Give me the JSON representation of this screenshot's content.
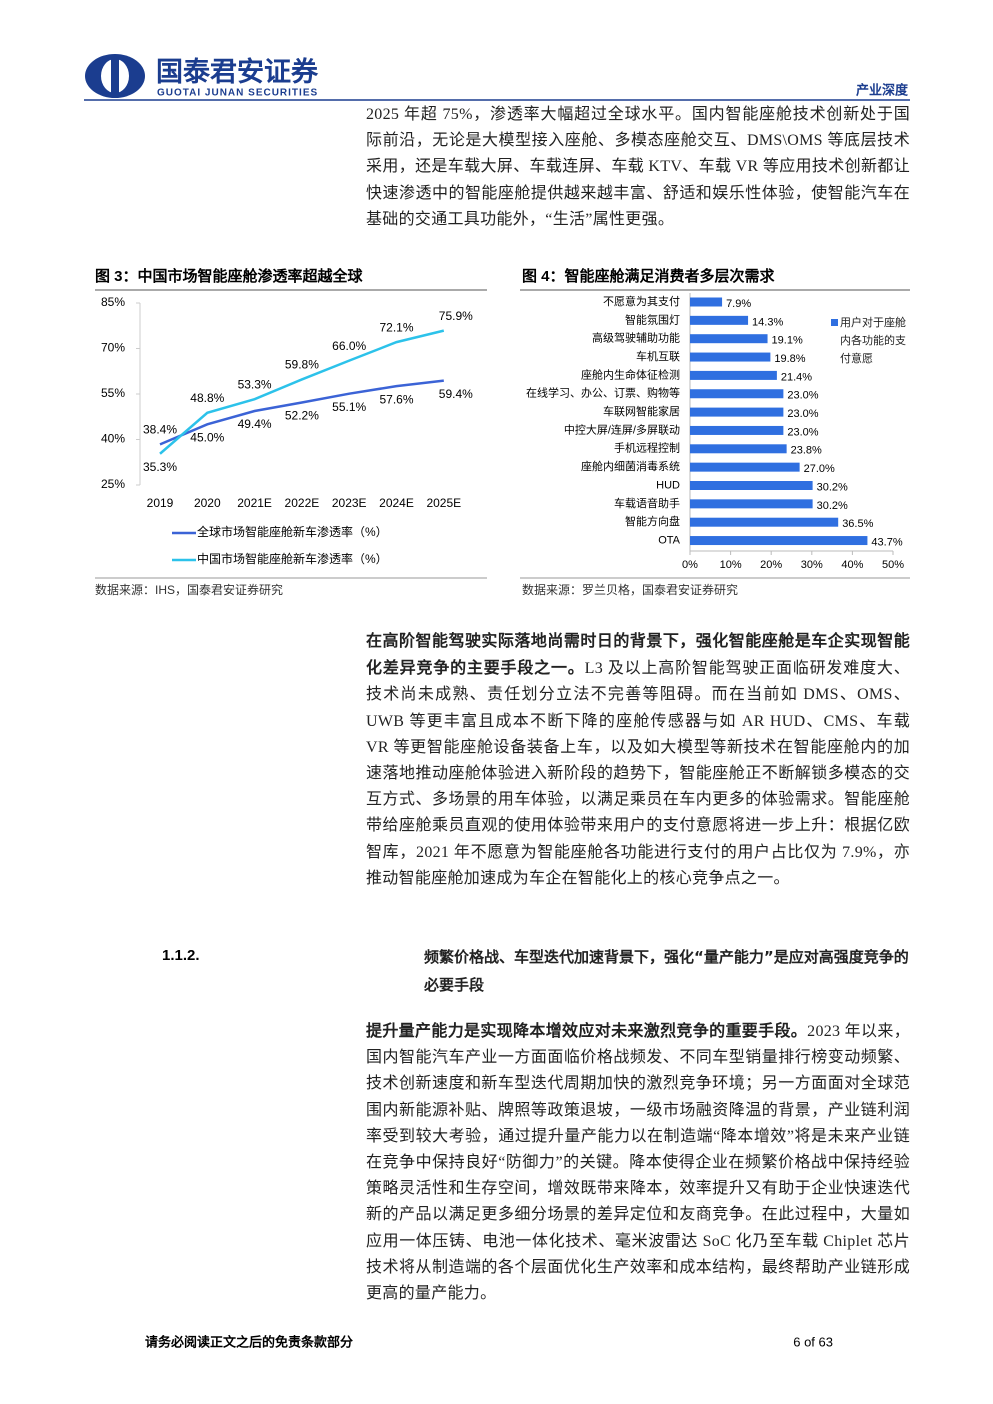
{
  "header": {
    "brand": "国泰君安证券",
    "brand_en": "GUOTAI JUNAN SECURITIES",
    "section": "产业深度"
  },
  "paragraphs": [
    {
      "lead": "",
      "text": "2025 年超 75%，渗透率大幅超过全球水平。国内智能座舱技术创新处于国际前沿，无论是大模型接入座舱、多模态座舱交互、DMS\\OMS 等底层技术采用，还是车载大屏、车载连屏、车载 KTV、车载 VR 等应用技术创新都让快速渗透中的智能座舱提供越来越丰富、舒适和娱乐性体验，使智能汽车在基础的交通工具功能外，“生活”属性更强。"
    },
    {
      "lead": "在高阶智能驾驶实际落地尚需时日的背景下，强化智能座舱是车企实现智能化差异竞争的主要手段之一。",
      "text": "L3 及以上高阶智能驾驶正面临研发难度大、技术尚未成熟、责任划分立法不完善等阻碍。而在当前如 DMS、OMS、UWB 等更丰富且成本不断下降的座舱传感器与如 AR HUD、CMS、车载 VR 等更智能座舱设备装备上车，以及如大模型等新技术在智能座舱内的加速落地推动座舱体验进入新阶段的趋势下，智能座舱正不断解锁多模态的交互方式、多场景的用车体验，以满足乘员在车内更多的体验需求。智能座舱带给座舱乘员直观的使用体验带来用户的支付意愿将进一步上升：根据亿欧智库，2021 年不愿意为智能座舱各功能进行支付的用户占比仅为 7.9%，亦推动智能座舱加速成为车企在智能化上的核心竞争点之一。"
    },
    {
      "lead": "提升量产能力是实现降本增效应对未来激烈竞争的重要手段。",
      "text": "2023 年以来，国内智能汽车产业一方面面临价格战频发、不同车型销量排行榜变动频繁、技术创新速度和新车型迭代周期加快的激烈竞争环境；另一方面面对全球范围内新能源补贴、牌照等政策退坡，一级市场融资降温的背景，产业链利润率受到较大考验，通过提升量产能力以在制造端“降本增效”将是未来产业链在竞争中保持良好“防御力”的关键。降本使得企业在频繁价格战中保持经验策略灵活性和生存空间，增效既带来降本，效率提升又有助于企业快速迭代新的产品以满足更多细分场景的差异定位和友商竞争。在此过程中，大量如应用一体压铸、电池一体化技术、毫米波雷达 SoC 化乃至车载 Chiplet 芯片技术将从制造端的各个层面优化生产效率和成本结构，最终帮助产业链形成更高的量产能力。"
    }
  ],
  "heading": {
    "number": "1.1.2.",
    "text": "频繁价格战、车型迭代加速背景下，强化“量产能力”是应对高强度竞争的必要手段"
  },
  "footer": {
    "disclaimer": "请务必阅读正文之后的免责条款部分",
    "page": "6 of 63"
  },
  "chart_data": [
    {
      "type": "line",
      "title": "图 3：中国市场智能座舱渗透率超越全球",
      "source": "数据来源：IHS，国泰君安证券研究",
      "categories": [
        "2019",
        "2020",
        "2021E",
        "2022E",
        "2023E",
        "2024E",
        "2025E"
      ],
      "series": [
        {
          "name": "全球市场智能座舱新车渗透率（%）",
          "color": "#3b63d6",
          "values": [
            38.4,
            45.0,
            49.4,
            52.2,
            55.1,
            57.6,
            59.4
          ],
          "value_labels": [
            "38.4%",
            "45.0%",
            "49.4%",
            "52.2%",
            "55.1%",
            "57.6%",
            "59.4%"
          ]
        },
        {
          "name": "中国市场智能座舱新车渗透率（%）",
          "color": "#2cc2ea",
          "values": [
            35.3,
            48.8,
            53.3,
            59.8,
            66.0,
            72.1,
            75.9
          ],
          "value_labels": [
            "35.3%",
            "48.8%",
            "53.3%",
            "59.8%",
            "66.0%",
            "72.1%",
            "75.9%"
          ]
        }
      ],
      "ylim": [
        25,
        85
      ],
      "yticks": [
        {
          "value": 25,
          "label": "25%"
        },
        {
          "value": 40,
          "label": "40%"
        },
        {
          "value": 55,
          "label": "55%"
        },
        {
          "value": 70,
          "label": "70%"
        },
        {
          "value": 85,
          "label": "85%"
        }
      ]
    },
    {
      "type": "hbar",
      "title": "图 4：智能座舱满足消费者多层次需求",
      "source": "数据来源：罗兰贝格，国泰君安证券研究",
      "categories": [
        "不愿意为其支付",
        "智能氛围灯",
        "高级驾驶辅助功能",
        "车机互联",
        "座舱内生命体征检测",
        "在线学习、办公、订票、购物等",
        "车联网智能家居",
        "中控大屏/连屏/多屏联动",
        "手机远程控制",
        "座舱内细菌消毒系统",
        "HUD",
        "车载语音助手",
        "智能方向盘",
        "OTA"
      ],
      "series": [
        {
          "name": "用户对于座舱内各功能的支付意愿",
          "color": "#2f6fe0",
          "values": [
            7.9,
            14.3,
            19.1,
            19.8,
            21.4,
            23.0,
            23.0,
            23.0,
            23.8,
            27.0,
            30.2,
            30.2,
            36.5,
            43.7
          ],
          "value_labels": [
            "7.9%",
            "14.3%",
            "19.1%",
            "19.8%",
            "21.4%",
            "23.0%",
            "23.0%",
            "23.0%",
            "23.8%",
            "27.0%",
            "30.2%",
            "30.2%",
            "36.5%",
            "43.7%"
          ]
        }
      ],
      "xlim": [
        0,
        50
      ],
      "xticks": [
        {
          "value": 0,
          "label": "0%"
        },
        {
          "value": 10,
          "label": "10%"
        },
        {
          "value": 20,
          "label": "20%"
        },
        {
          "value": 30,
          "label": "30%"
        },
        {
          "value": 40,
          "label": "40%"
        },
        {
          "value": 50,
          "label": "50%"
        }
      ]
    }
  ]
}
